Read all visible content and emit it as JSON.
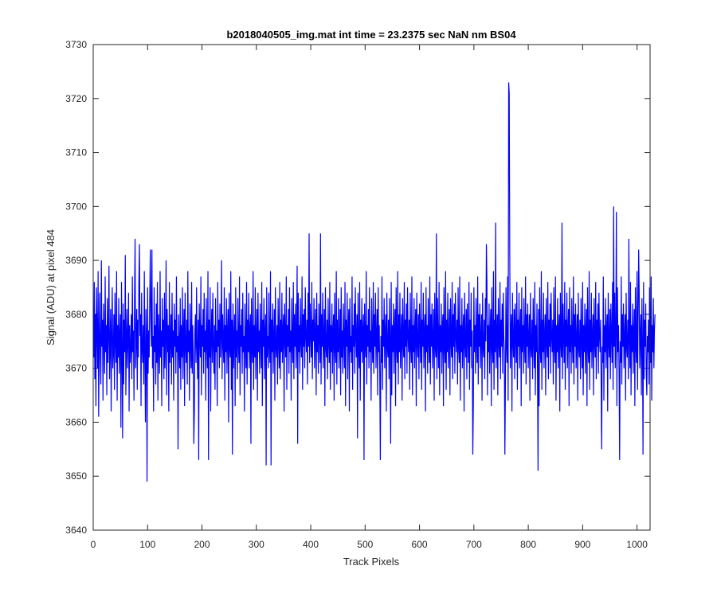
{
  "chart_data": {
    "type": "line",
    "title": "b2018040505_img.mat int time = 23.2375 sec  NaN nm BS04",
    "xlabel": "Track Pixels",
    "ylabel": "Signal (ADU) at pixel 484",
    "xlim": [
      0,
      1024
    ],
    "ylim": [
      3640,
      3730
    ],
    "xticks": [
      0,
      100,
      200,
      300,
      400,
      500,
      600,
      700,
      800,
      900,
      1000
    ],
    "yticks": [
      3640,
      3650,
      3660,
      3670,
      3680,
      3690,
      3700,
      3710,
      3720,
      3730
    ],
    "grid": false,
    "line_color": "#0000ff",
    "series": [
      {
        "x_start": 1,
        "x_step": 1,
        "values": [
          3672,
          3686,
          3668,
          3680,
          3663,
          3685,
          3677,
          3670,
          3688,
          3661,
          3675,
          3684,
          3672,
          3667,
          3690,
          3674,
          3679,
          3664,
          3682,
          3676,
          3669,
          3687,
          3673,
          3678,
          3665,
          3683,
          3671,
          3676,
          3689,
          3668,
          3674,
          3681,
          3662,
          3677,
          3685,
          3670,
          3673,
          3680,
          3666,
          3684,
          3675,
          3671,
          3688,
          3664,
          3678,
          3672,
          3683,
          3669,
          3676,
          3680,
          3659,
          3686,
          3674,
          3670,
          3682,
          3667,
          3679,
          3673,
          3691,
          3665,
          3675,
          3681,
          3670,
          3676,
          3684,
          3662,
          3678,
          3671,
          3674,
          3680,
          3668,
          3687,
          3673,
          3677,
          3664,
          3683,
          3694,
          3670,
          3675,
          3681,
          3666,
          3679,
          3672,
          3686,
          3669,
          3676,
          3680,
          3663,
          3684,
          3674,
          3671,
          3678,
          3667,
          3688,
          3673,
          3660,
          3681,
          3676,
          3649,
          3685,
          3669,
          3677,
          3672,
          3683,
          3665,
          3679,
          3674,
          3692,
          3670,
          3676,
          3662,
          3685,
          3673,
          3678,
          3667,
          3682,
          3671,
          3686,
          3664,
          3680,
          3675,
          3669,
          3688,
          3672,
          3677,
          3663,
          3683,
          3674,
          3679,
          3668,
          3684,
          3670,
          3676,
          3690,
          3665,
          3681,
          3673,
          3678,
          3662,
          3686,
          3671,
          3675,
          3680,
          3667,
          3684,
          3672,
          3677,
          3664,
          3682,
          3674,
          3679,
          3669,
          3687,
          3673,
          3676,
          3655,
          3680,
          3675,
          3670,
          3683,
          3666,
          3678,
          3672,
          3685,
          3668,
          3676,
          3681,
          3663,
          3684,
          3674,
          3671,
          3679,
          3667,
          3688,
          3673,
          3677,
          3664,
          3682,
          3675,
          3670,
          3686,
          3669,
          3678,
          3673,
          3683,
          3662,
          3677,
          3680,
          3671,
          3685,
          3674,
          3668,
          3679,
          3653,
          3682,
          3676,
          3672,
          3687,
          3665,
          3678,
          3674,
          3681,
          3669,
          3684,
          3673,
          3677,
          3664,
          3683,
          3675,
          3670,
          3688,
          3668,
          3679,
          3672,
          3685,
          3662,
          3676,
          3681,
          3671,
          3684,
          3674,
          3669,
          3678,
          3666,
          3683,
          3673,
          3677,
          3663,
          3686,
          3674,
          3679,
          3670,
          3682,
          3672,
          3676,
          3690,
          3668,
          3680,
          3675,
          3671,
          3685,
          3664,
          3678,
          3673,
          3683,
          3669,
          3677,
          3681,
          3660,
          3684,
          3674,
          3672,
          3688,
          3666,
          3679,
          3673,
          3682,
          3670,
          3676,
          3680,
          3663,
          3685,
          3672,
          3677,
          3668,
          3683,
          3675,
          3671,
          3687,
          3665,
          3678,
          3674,
          3681,
          3669,
          3684,
          3673,
          3676,
          3662,
          3682,
          3675,
          3670,
          3686,
          3667,
          3679,
          3673,
          3684,
          3670,
          3677,
          3680,
          3656,
          3683,
          3674,
          3671,
          3688,
          3666,
          3678,
          3672,
          3685,
          3668,
          3676,
          3681,
          3664,
          3684,
          3673,
          3677,
          3669,
          3682,
          3675,
          3670,
          3686,
          3663,
          3679,
          3674,
          3683,
          3668,
          3677,
          3680,
          3652,
          3685,
          3672,
          3676,
          3670,
          3684,
          3674,
          3671,
          3688,
          3666,
          3679,
          3673,
          3682,
          3669,
          3676,
          3681,
          3664,
          3685,
          3674,
          3672,
          3678,
          3667,
          3683,
          3675,
          3670,
          3686,
          3668,
          3679,
          3673,
          3684,
          3671,
          3677,
          3680,
          3662,
          3682,
          3676,
          3672,
          3687,
          3666,
          3678,
          3674,
          3681,
          3669,
          3685,
          3673,
          3677,
          3664,
          3683,
          3675,
          3671,
          3686,
          3668,
          3680,
          3674,
          3682,
          3670,
          3676,
          3689,
          3665,
          3684,
          3673,
          3678,
          3669,
          3683,
          3675,
          3672,
          3687,
          3666,
          3680,
          3674,
          3681,
          3670,
          3685,
          3676,
          3673,
          3679,
          3667,
          3684,
          3674,
          3695,
          3671,
          3682,
          3676,
          3672,
          3686,
          3668,
          3679,
          3675,
          3683,
          3670,
          3677,
          3681,
          3665,
          3684,
          3673,
          3678,
          3669,
          3682,
          3676,
          3671,
          3687,
          3667,
          3680,
          3674,
          3684,
          3670,
          3676,
          3681,
          3663,
          3685,
          3674,
          3672,
          3679,
          3668,
          3683,
          3675,
          3671,
          3686,
          3666,
          3678,
          3673,
          3682,
          3669,
          3677,
          3680,
          3664,
          3684,
          3674,
          3671,
          3688,
          3667,
          3679,
          3673,
          3683,
          3670,
          3676,
          3681,
          3665,
          3685,
          3672,
          3677,
          3669,
          3682,
          3675,
          3670,
          3686,
          3663,
          3679,
          3674,
          3684,
          3668,
          3677,
          3681,
          3662,
          3683,
          3673,
          3676,
          3671,
          3687,
          3666,
          3678,
          3674,
          3682,
          3669,
          3685,
          3676,
          3672,
          3680,
          3667,
          3684,
          3674,
          3670,
          3686,
          3664,
          3679,
          3673,
          3683,
          3671,
          3677,
          3680,
          3653,
          3682,
          3675,
          3672,
          3688,
          3667,
          3678,
          3674,
          3681,
          3670,
          3685,
          3673,
          3677,
          3664,
          3683,
          3675,
          3671,
          3686,
          3669,
          3680,
          3674,
          3684,
          3670,
          3676,
          3681,
          3665,
          3685,
          3673,
          3678,
          3668,
          3682,
          3676,
          3671,
          3687,
          3666,
          3679,
          3674,
          3683,
          3670,
          3677,
          3680,
          3662,
          3684,
          3674,
          3672,
          3679,
          3668,
          3683,
          3675,
          3670,
          3686,
          3665,
          3678,
          3673,
          3682,
          3669,
          3677,
          3681,
          3663,
          3685,
          3674,
          3671,
          3688,
          3667,
          3680,
          3673,
          3684,
          3670,
          3676,
          3680,
          3664,
          3683,
          3675,
          3672,
          3686,
          3668,
          3679,
          3674,
          3682,
          3669,
          3685,
          3676,
          3673,
          3679,
          3666,
          3684,
          3674,
          3671,
          3687,
          3665,
          3678,
          3673,
          3683,
          3670,
          3677,
          3681,
          3663,
          3684,
          3675,
          3672,
          3680,
          3668,
          3682,
          3676,
          3671,
          3686,
          3666,
          3679,
          3674,
          3684,
          3670,
          3677,
          3680,
          3662,
          3685,
          3673,
          3678,
          3669,
          3683,
          3675,
          3671,
          3687,
          3667,
          3680,
          3674,
          3682,
          3670,
          3676,
          3681,
          3664,
          3684,
          3674,
          3672,
          3679,
          3668,
          3683,
          3675,
          3670,
          3686,
          3665,
          3678,
          3673,
          3682,
          3669,
          3677,
          3680,
          3663,
          3685,
          3674,
          3671,
          3688,
          3666,
          3679,
          3673,
          3684,
          3670,
          3676,
          3681,
          3665,
          3683,
          3675,
          3672,
          3686,
          3668,
          3680,
          3674,
          3682,
          3669,
          3684,
          3676,
          3673,
          3679,
          3667,
          3685,
          3674,
          3671,
          3687,
          3664,
          3678,
          3673,
          3683,
          3670,
          3677,
          3680,
          3662,
          3684,
          3675,
          3672,
          3681,
          3668,
          3682,
          3676,
          3671,
          3686,
          3666,
          3679,
          3674,
          3684,
          3670,
          3677,
          3681,
          3663,
          3685,
          3673,
          3678,
          3669,
          3683,
          3675,
          3671,
          3687,
          3667,
          3680,
          3674,
          3682,
          3670,
          3676,
          3680,
          3664,
          3684,
          3674,
          3672,
          3679,
          3668,
          3683,
          3675,
          3670,
          3686,
          3665,
          3678,
          3673,
          3682,
          3669,
          3677,
          3681,
          3663,
          3685,
          3674,
          3671,
          3688,
          3666,
          3679,
          3673,
          3684,
          3670,
          3676,
          3680,
          3665,
          3683,
          3675,
          3672,
          3686,
          3668,
          3679,
          3674,
          3682,
          3669,
          3684,
          3676,
          3673,
          3679,
          3667,
          3685,
          3674,
          3671,
          3687,
          3664,
          3678,
          3673,
          3683,
          3670,
          3677,
          3680,
          3662,
          3684,
          3675,
          3672,
          3681,
          3668,
          3682,
          3676,
          3671,
          3686,
          3666,
          3679,
          3674,
          3684,
          3670,
          3677,
          3681,
          3663,
          3685,
          3673,
          3678,
          3669,
          3683,
          3675,
          3671,
          3687,
          3667,
          3680,
          3674,
          3682,
          3670,
          3676,
          3680,
          3664,
          3684,
          3674,
          3672,
          3679,
          3668,
          3683,
          3675,
          3670,
          3686,
          3665,
          3678,
          3673,
          3682,
          3669,
          3677,
          3681,
          3663,
          3685,
          3674,
          3671,
          3688,
          3666,
          3679,
          3673,
          3684,
          3670,
          3676,
          3680,
          3665,
          3683,
          3675,
          3672,
          3686,
          3668,
          3679,
          3674,
          3682,
          3669,
          3684,
          3676,
          3673,
          3679,
          3667,
          3685,
          3674,
          3671,
          3687,
          3664,
          3678,
          3673,
          3683,
          3670,
          3677,
          3680,
          3662,
          3684,
          3675,
          3672,
          3681,
          3668,
          3682,
          3676,
          3671,
          3686,
          3666,
          3679,
          3674,
          3684,
          3670,
          3677,
          3681,
          3663,
          3685,
          3673,
          3678,
          3669,
          3683,
          3675,
          3671,
          3687,
          3667,
          3680,
          3674,
          3682,
          3670,
          3676,
          3680,
          3664,
          3684,
          3674,
          3672,
          3679,
          3668,
          3683,
          3675,
          3670,
          3686,
          3665,
          3678,
          3673,
          3682,
          3669,
          3677,
          3681,
          3663,
          3685,
          3674,
          3671,
          3688,
          3666,
          3679,
          3673,
          3684,
          3670,
          3676,
          3680,
          3665,
          3683,
          3675,
          3672,
          3686,
          3668,
          3679,
          3674,
          3682,
          3669,
          3684,
          3676,
          3673,
          3679,
          3667,
          3685,
          3674,
          3671,
          3687,
          3664,
          3678,
          3673,
          3683,
          3670,
          3677,
          3680,
          3662,
          3684,
          3675,
          3672,
          3681,
          3668,
          3682,
          3676,
          3671,
          3686,
          3666,
          3679,
          3674,
          3684,
          3670,
          3677,
          3681,
          3663,
          3685,
          3673,
          3678,
          3669,
          3683,
          3675,
          3671,
          3687,
          3667,
          3680,
          3674,
          3682,
          3670,
          3676,
          3680,
          3664,
          3684,
          3674,
          3672,
          3679,
          3668,
          3683,
          3675,
          3670,
          3686,
          3665,
          3678,
          3673,
          3682,
          3669,
          3677,
          3681,
          3663,
          3685,
          3674,
          3671,
          3688,
          3666,
          3679,
          3673,
          3684,
          3670,
          3676,
          3680,
          3665,
          3683,
          3675,
          3672,
          3686,
          3668,
          3679,
          3674,
          3682,
          3669,
          3684,
          3676,
          3673,
          3679,
          3667,
          3685,
          3674,
          3671,
          3687,
          3664,
          3678,
          3673,
          3683,
          3670,
          3677,
          3680
        ]
      }
    ],
    "overrides": [
      {
        "x": 54,
        "y": 3657
      },
      {
        "x": 77,
        "y": 3694
      },
      {
        "x": 85,
        "y": 3693
      },
      {
        "x": 99,
        "y": 3649
      },
      {
        "x": 105,
        "y": 3692
      },
      {
        "x": 185,
        "y": 3656
      },
      {
        "x": 212,
        "y": 3653
      },
      {
        "x": 256,
        "y": 3654
      },
      {
        "x": 327,
        "y": 3652
      },
      {
        "x": 376,
        "y": 3656
      },
      {
        "x": 418,
        "y": 3695
      },
      {
        "x": 486,
        "y": 3657
      },
      {
        "x": 528,
        "y": 3653
      },
      {
        "x": 547,
        "y": 3656
      },
      {
        "x": 631,
        "y": 3695
      },
      {
        "x": 698,
        "y": 3654
      },
      {
        "x": 723,
        "y": 3693
      },
      {
        "x": 740,
        "y": 3697
      },
      {
        "x": 757,
        "y": 3654
      },
      {
        "x": 764,
        "y": 3723
      },
      {
        "x": 765,
        "y": 3721
      },
      {
        "x": 766,
        "y": 3691
      },
      {
        "x": 818,
        "y": 3651
      },
      {
        "x": 862,
        "y": 3697
      },
      {
        "x": 935,
        "y": 3655
      },
      {
        "x": 957,
        "y": 3700
      },
      {
        "x": 962,
        "y": 3699
      },
      {
        "x": 968,
        "y": 3653
      },
      {
        "x": 985,
        "y": 3694
      },
      {
        "x": 1003,
        "y": 3692
      },
      {
        "x": 1011,
        "y": 3654
      },
      {
        "x": 1018,
        "y": 3665
      }
    ]
  }
}
